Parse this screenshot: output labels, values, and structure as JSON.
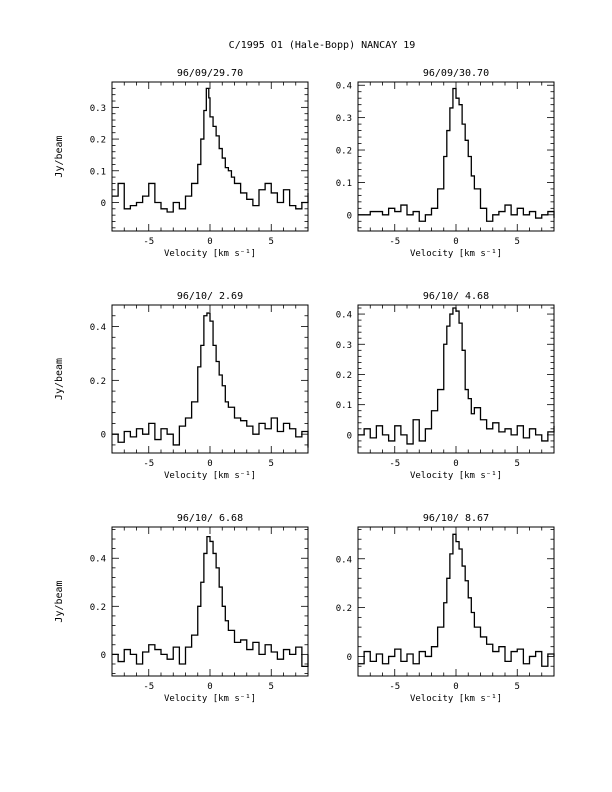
{
  "figure": {
    "title": "C/1995 O1 (Hale-Bopp)   NANCAY    19"
  },
  "chart_data": [
    {
      "type": "line",
      "title": "96/09/29.70",
      "xlabel": "Velocity [km s⁻¹]",
      "ylabel": "Jy/beam",
      "xlim": [
        -8,
        8
      ],
      "ylim": [
        -0.09,
        0.38
      ],
      "xticks": [
        -5,
        0,
        5
      ],
      "yticks": [
        0,
        0.1,
        0.2,
        0.3
      ],
      "ytick_labels": [
        "0",
        "0.1",
        "0.2",
        "0.3"
      ],
      "series": [
        {
          "x": [
            -8,
            -7.5,
            -7,
            -6.5,
            -6,
            -5.5,
            -5,
            -4.5,
            -4,
            -3.5,
            -3,
            -2.5,
            -2,
            -1.5,
            -1,
            -0.75,
            -0.5,
            -0.3,
            -0.1,
            0,
            0.25,
            0.5,
            0.75,
            1,
            1.25,
            1.5,
            1.75,
            2,
            2.5,
            3,
            3.5,
            4,
            4.5,
            5,
            5.5,
            6,
            6.5,
            7,
            7.5,
            8
          ],
          "y": [
            0.02,
            0.06,
            -0.02,
            -0.01,
            0.0,
            0.02,
            0.06,
            0.0,
            -0.02,
            -0.03,
            0.0,
            -0.02,
            0.02,
            0.06,
            0.12,
            0.2,
            0.29,
            0.36,
            0.33,
            0.27,
            0.24,
            0.21,
            0.17,
            0.14,
            0.11,
            0.1,
            0.08,
            0.06,
            0.03,
            0.01,
            -0.01,
            0.04,
            0.06,
            0.03,
            0.0,
            0.04,
            -0.01,
            -0.02,
            0.0,
            0.03
          ]
        }
      ]
    },
    {
      "type": "line",
      "title": "96/09/30.70",
      "xlabel": "Velocity [km s⁻¹]",
      "ylabel": "",
      "xlim": [
        -8,
        8
      ],
      "ylim": [
        -0.05,
        0.41
      ],
      "xticks": [
        -5,
        0,
        5
      ],
      "yticks": [
        0,
        0.1,
        0.2,
        0.3,
        0.4
      ],
      "ytick_labels": [
        "0",
        "0.1",
        "0.2",
        "0.3",
        "0.4"
      ],
      "series": [
        {
          "x": [
            -8,
            -7,
            -6,
            -5.5,
            -5,
            -4.5,
            -4,
            -3.5,
            -3,
            -2.5,
            -2,
            -1.5,
            -1,
            -0.75,
            -0.5,
            -0.25,
            0,
            0.25,
            0.5,
            0.75,
            1,
            1.25,
            1.5,
            2,
            2.5,
            3,
            3.5,
            4,
            4.5,
            5,
            5.5,
            6,
            6.5,
            7,
            7.5,
            8
          ],
          "y": [
            0.0,
            0.01,
            0.0,
            0.02,
            0.01,
            0.03,
            0.0,
            0.01,
            -0.02,
            0.0,
            0.02,
            0.08,
            0.18,
            0.26,
            0.33,
            0.39,
            0.36,
            0.34,
            0.28,
            0.23,
            0.18,
            0.12,
            0.08,
            0.02,
            -0.02,
            0.0,
            0.01,
            0.03,
            0.0,
            0.02,
            0.0,
            0.01,
            -0.01,
            0.0,
            0.01,
            -0.01
          ]
        }
      ]
    },
    {
      "type": "line",
      "title": "96/10/ 2.69",
      "xlabel": "Velocity [km s⁻¹]",
      "ylabel": "Jy/beam",
      "xlim": [
        -8,
        8
      ],
      "ylim": [
        -0.07,
        0.48
      ],
      "xticks": [
        -5,
        0,
        5
      ],
      "yticks": [
        0,
        0.2,
        0.4
      ],
      "ytick_labels": [
        "0",
        "0.2",
        "0.4"
      ],
      "series": [
        {
          "x": [
            -8,
            -7.5,
            -7,
            -6.5,
            -6,
            -5.5,
            -5,
            -4.5,
            -4,
            -3.5,
            -3,
            -2.5,
            -2,
            -1.5,
            -1,
            -0.75,
            -0.5,
            -0.25,
            0,
            0.25,
            0.5,
            0.75,
            1,
            1.25,
            1.5,
            2,
            2.5,
            3,
            3.5,
            4,
            4.5,
            5,
            5.5,
            6,
            6.5,
            7,
            7.5,
            8
          ],
          "y": [
            0.0,
            -0.03,
            0.01,
            -0.01,
            0.02,
            0.0,
            0.04,
            -0.02,
            0.02,
            0.0,
            -0.04,
            0.03,
            0.06,
            0.12,
            0.25,
            0.33,
            0.44,
            0.45,
            0.42,
            0.33,
            0.27,
            0.22,
            0.18,
            0.12,
            0.1,
            0.06,
            0.05,
            0.03,
            0.0,
            0.04,
            0.02,
            0.06,
            0.01,
            0.04,
            0.02,
            -0.01,
            0.01,
            -0.05
          ]
        }
      ]
    },
    {
      "type": "line",
      "title": "96/10/ 4.68",
      "xlabel": "Velocity [km s⁻¹]",
      "ylabel": "",
      "xlim": [
        -8,
        8
      ],
      "ylim": [
        -0.06,
        0.43
      ],
      "xticks": [
        -5,
        0,
        5
      ],
      "yticks": [
        0,
        0.1,
        0.2,
        0.3,
        0.4
      ],
      "ytick_labels": [
        "0",
        "0.1",
        "0.2",
        "0.3",
        "0.4"
      ],
      "series": [
        {
          "x": [
            -8,
            -7.5,
            -7,
            -6.5,
            -6,
            -5.5,
            -5,
            -4.5,
            -4,
            -3.5,
            -3,
            -2.5,
            -2,
            -1.5,
            -1,
            -0.75,
            -0.5,
            -0.25,
            0,
            0.25,
            0.5,
            0.75,
            1,
            1.25,
            1.5,
            2,
            2.5,
            3,
            3.5,
            4,
            4.5,
            5,
            5.5,
            6,
            6.5,
            7,
            7.5,
            8
          ],
          "y": [
            0.0,
            0.02,
            -0.01,
            0.03,
            0.0,
            -0.02,
            0.03,
            0.0,
            -0.03,
            0.05,
            -0.02,
            0.02,
            0.08,
            0.15,
            0.3,
            0.36,
            0.4,
            0.42,
            0.41,
            0.37,
            0.28,
            0.15,
            0.12,
            0.07,
            0.09,
            0.05,
            0.02,
            0.04,
            0.01,
            0.02,
            0.0,
            0.03,
            -0.01,
            0.02,
            0.0,
            -0.02,
            0.01,
            0.03
          ]
        }
      ]
    },
    {
      "type": "line",
      "title": "96/10/ 6.68",
      "xlabel": "Velocity [km s⁻¹]",
      "ylabel": "Jy/beam",
      "xlim": [
        -8,
        8
      ],
      "ylim": [
        -0.09,
        0.53
      ],
      "xticks": [
        -5,
        0,
        5
      ],
      "yticks": [
        0,
        0.2,
        0.4
      ],
      "ytick_labels": [
        "0",
        "0.2",
        "0.4"
      ],
      "series": [
        {
          "x": [
            -8,
            -7.5,
            -7,
            -6.5,
            -6,
            -5.5,
            -5,
            -4.5,
            -4,
            -3.5,
            -3,
            -2.5,
            -2,
            -1.5,
            -1,
            -0.75,
            -0.5,
            -0.25,
            0,
            0.25,
            0.5,
            0.75,
            1,
            1.25,
            1.5,
            2,
            2.5,
            3,
            3.5,
            4,
            4.5,
            5,
            5.5,
            6,
            6.5,
            7,
            7.5,
            8
          ],
          "y": [
            0.0,
            -0.03,
            0.02,
            0.0,
            -0.04,
            0.01,
            0.04,
            0.02,
            0.0,
            -0.02,
            0.03,
            -0.04,
            0.03,
            0.08,
            0.2,
            0.3,
            0.42,
            0.49,
            0.47,
            0.42,
            0.36,
            0.28,
            0.2,
            0.14,
            0.1,
            0.05,
            0.06,
            0.02,
            0.05,
            0.0,
            0.04,
            0.01,
            -0.02,
            0.02,
            0.0,
            0.03,
            -0.05,
            0.0
          ]
        }
      ]
    },
    {
      "type": "line",
      "title": "96/10/ 8.67",
      "xlabel": "Velocity [km s⁻¹]",
      "ylabel": "",
      "xlim": [
        -8,
        8
      ],
      "ylim": [
        -0.08,
        0.53
      ],
      "xticks": [
        -5,
        0,
        5
      ],
      "yticks": [
        0,
        0.2,
        0.4
      ],
      "ytick_labels": [
        "0",
        "0.2",
        "0.4"
      ],
      "series": [
        {
          "x": [
            -8,
            -7.5,
            -7,
            -6.5,
            -6,
            -5.5,
            -5,
            -4.5,
            -4,
            -3.5,
            -3,
            -2.5,
            -2,
            -1.5,
            -1,
            -0.75,
            -0.5,
            -0.25,
            0,
            0.25,
            0.5,
            0.75,
            1,
            1.25,
            1.5,
            2,
            2.5,
            3,
            3.5,
            4,
            4.5,
            5,
            5.5,
            6,
            6.5,
            7,
            7.5,
            8
          ],
          "y": [
            -0.03,
            0.02,
            -0.02,
            0.01,
            -0.03,
            0.0,
            0.03,
            -0.02,
            0.01,
            -0.03,
            0.02,
            0.0,
            0.04,
            0.12,
            0.22,
            0.32,
            0.42,
            0.5,
            0.47,
            0.44,
            0.37,
            0.31,
            0.24,
            0.18,
            0.12,
            0.08,
            0.05,
            0.02,
            0.04,
            -0.02,
            0.02,
            0.03,
            -0.03,
            0.0,
            0.02,
            -0.04,
            0.01,
            0.0
          ]
        }
      ]
    }
  ]
}
